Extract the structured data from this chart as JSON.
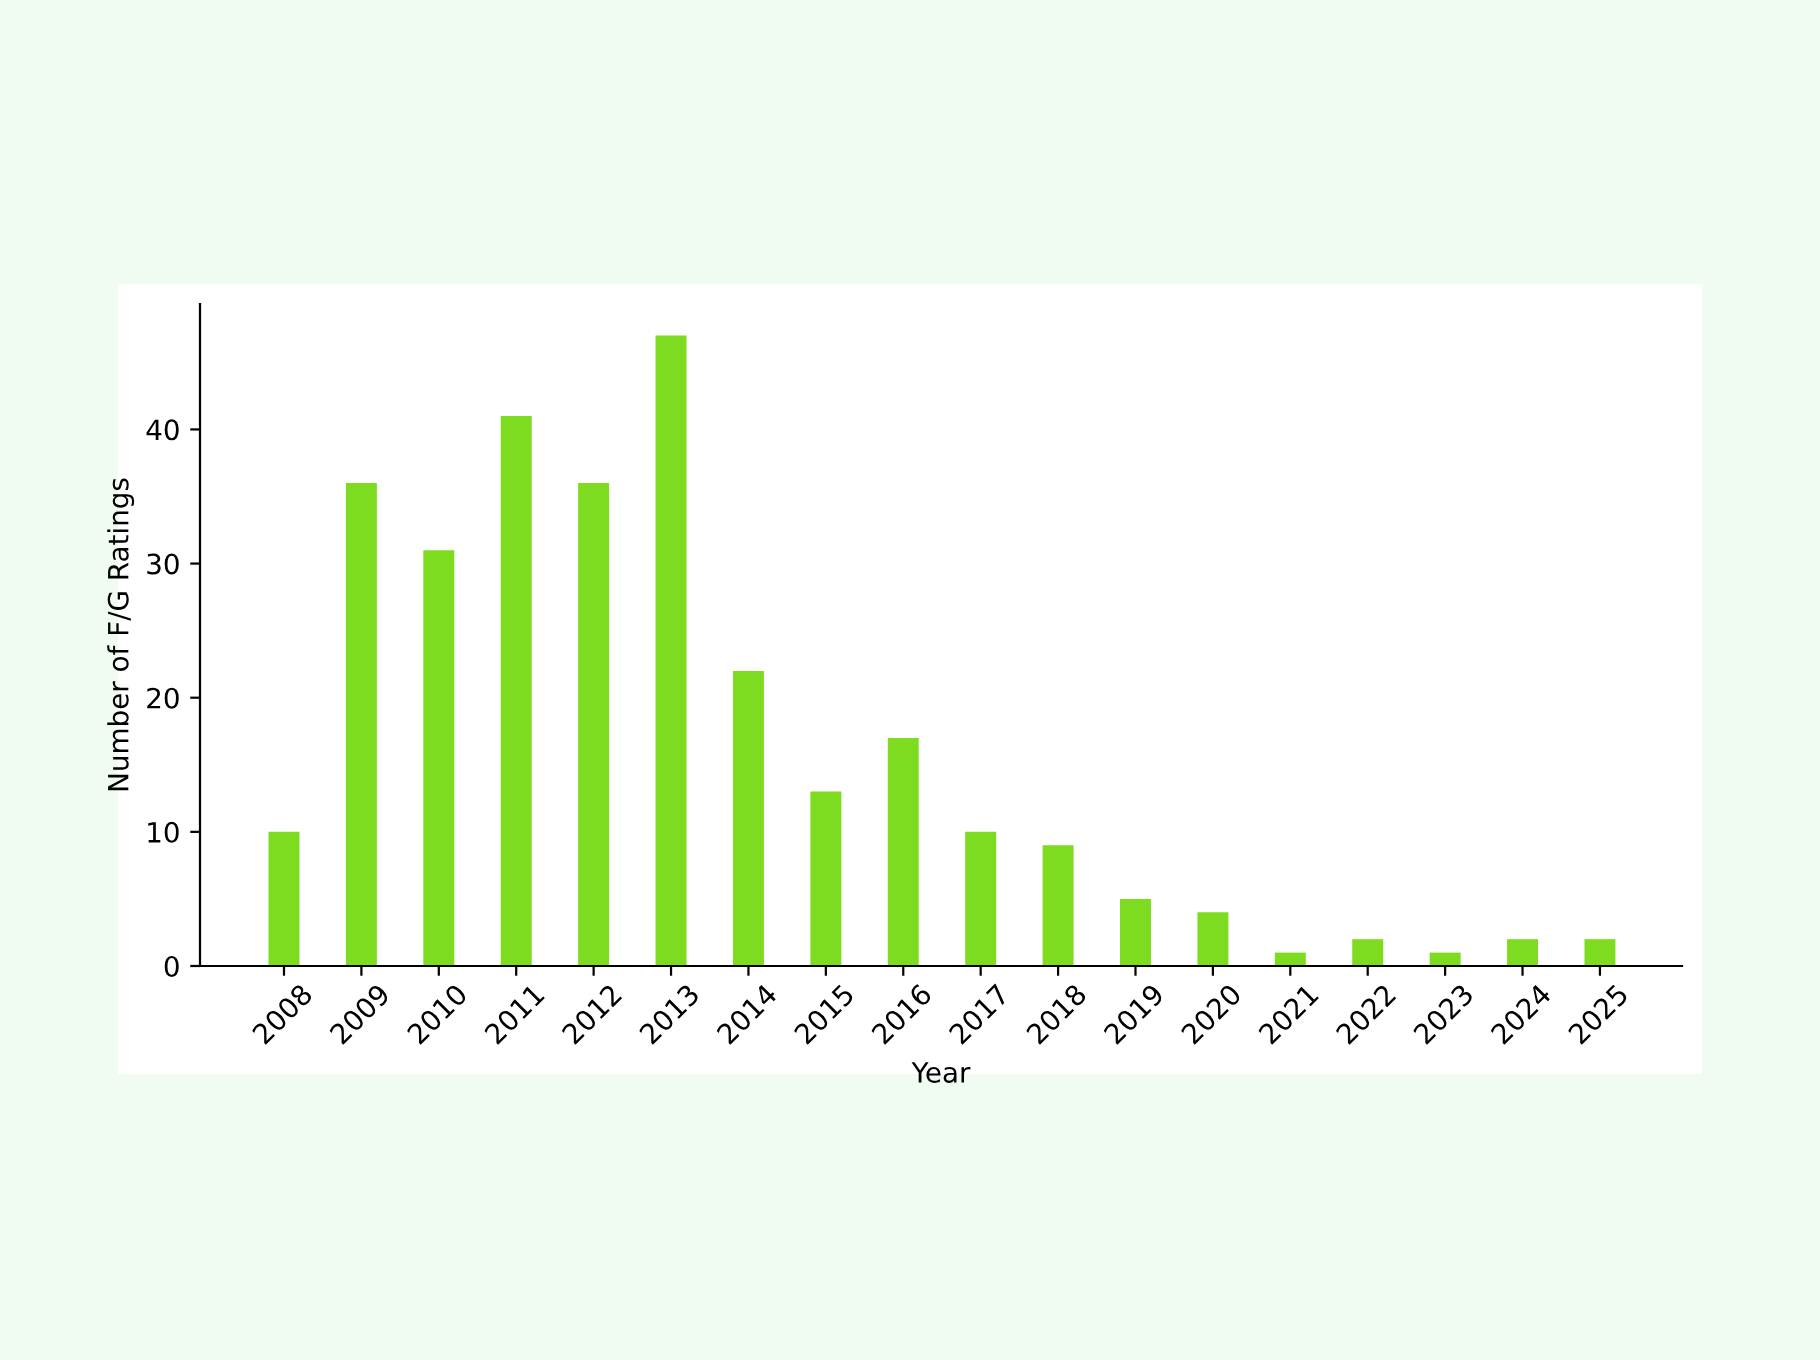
{
  "chart_data": {
    "type": "bar",
    "xlabel": "Year",
    "ylabel": "Number of F/G Ratings",
    "categories": [
      "2008",
      "2009",
      "2010",
      "2011",
      "2012",
      "2013",
      "2014",
      "2015",
      "2016",
      "2017",
      "2018",
      "2019",
      "2020",
      "2021",
      "2022",
      "2023",
      "2024",
      "2025"
    ],
    "values": [
      10,
      36,
      31,
      41,
      36,
      47,
      22,
      13,
      17,
      10,
      9,
      5,
      4,
      1,
      2,
      1,
      2,
      2
    ],
    "color": "#7ddc1f",
    "ylim": [
      0,
      49.35
    ],
    "yticks": [
      0,
      10,
      20,
      30,
      40
    ]
  }
}
